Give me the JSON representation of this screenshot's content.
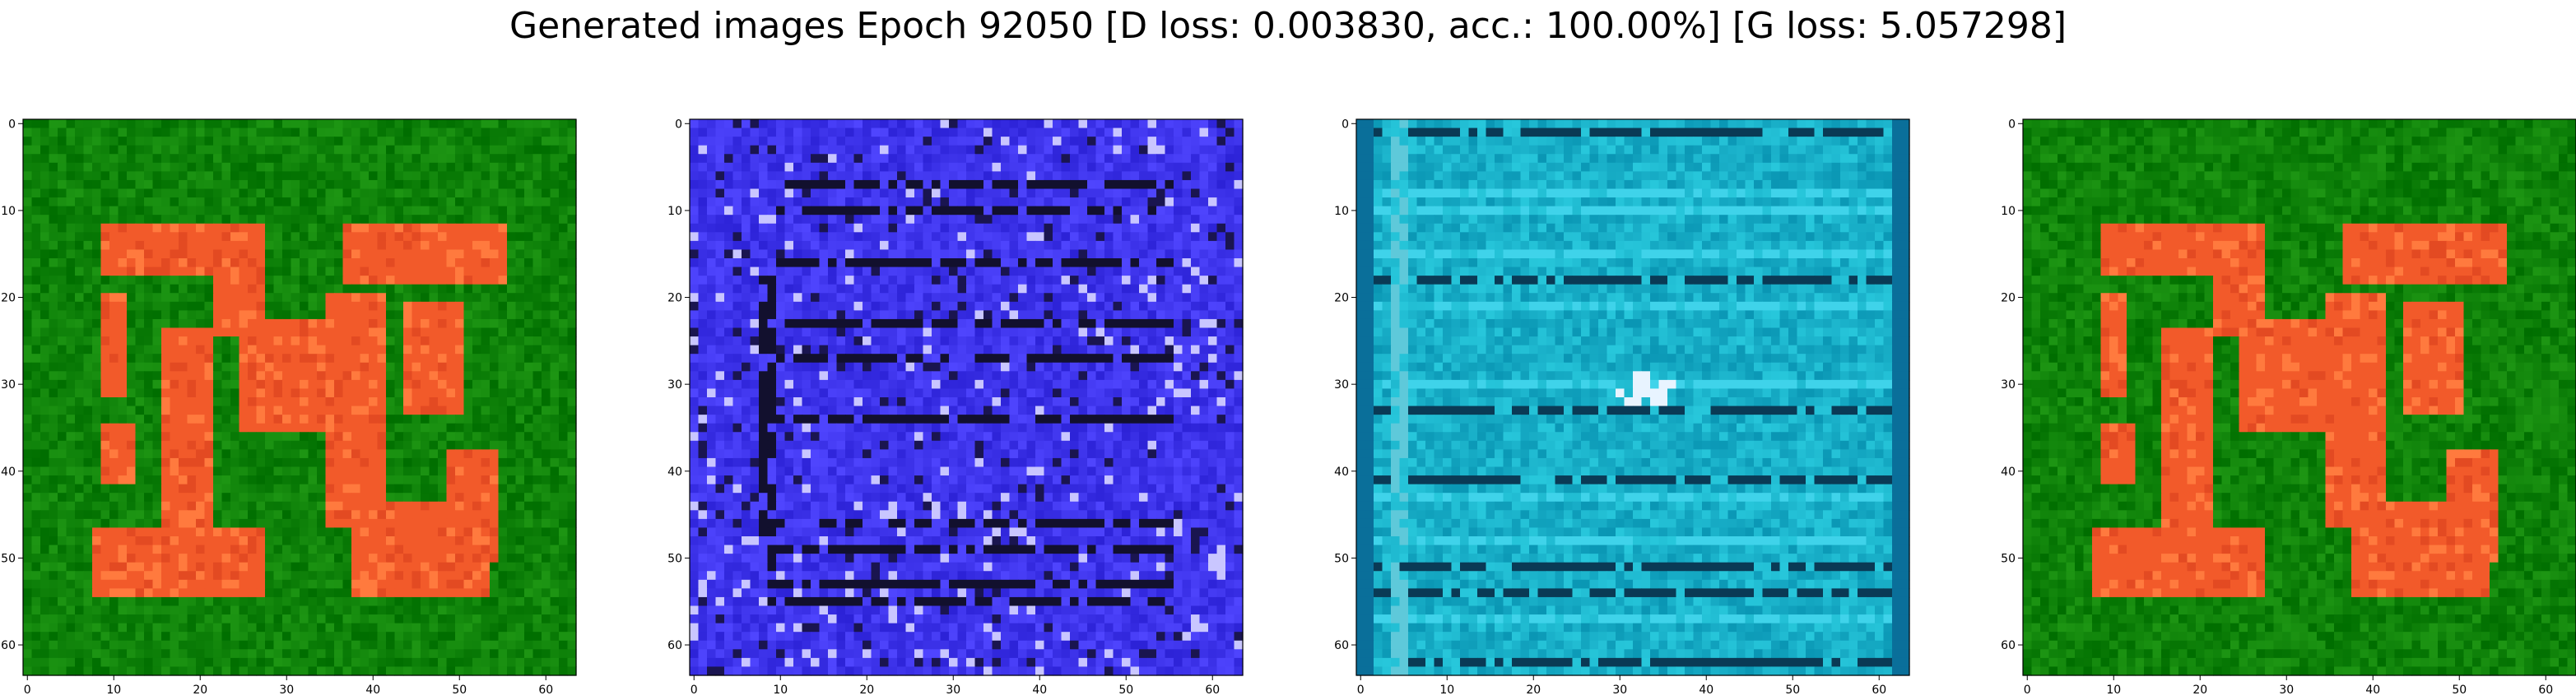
{
  "title": "Generated images Epoch 92050 [D loss: 0.003830, acc.: 100.00%] [G loss: 5.057298]",
  "chart_data": [
    {
      "type": "heatmap",
      "image": "Green background with red-orange glyph-like shape",
      "colors": {
        "background": "#0b7a0b",
        "foreground": "#f25a2a"
      },
      "xlim": [
        0,
        63
      ],
      "ylim": [
        63,
        0
      ],
      "xticks": [
        "0",
        "10",
        "20",
        "30",
        "40",
        "50",
        "60"
      ],
      "yticks": [
        "0",
        "10",
        "20",
        "30",
        "40",
        "50",
        "60"
      ]
    },
    {
      "type": "heatmap",
      "image": "Blue noisy texture with dark horizontal/vertical streaks",
      "colors": {
        "background": "#3b2af0",
        "foreground": "#0a0a2a"
      },
      "xlim": [
        0,
        63
      ],
      "ylim": [
        63,
        0
      ],
      "xticks": [
        "0",
        "10",
        "20",
        "30",
        "40",
        "50",
        "60"
      ],
      "yticks": [
        "0",
        "10",
        "20",
        "30",
        "40",
        "50",
        "60"
      ]
    },
    {
      "type": "heatmap",
      "image": "Cyan texture with horizontal bands and a bright spot near center",
      "colors": {
        "background": "#1aa6c4",
        "foreground": "#07324a"
      },
      "xlim": [
        0,
        63
      ],
      "ylim": [
        63,
        0
      ],
      "xticks": [
        "0",
        "10",
        "20",
        "30",
        "40",
        "50",
        "60"
      ],
      "yticks": [
        "0",
        "10",
        "20",
        "30",
        "40",
        "50",
        "60"
      ]
    },
    {
      "type": "heatmap",
      "image": "Green background with red-orange glyph-like shape",
      "colors": {
        "background": "#0b7a0b",
        "foreground": "#f25a2a"
      },
      "xlim": [
        0,
        63
      ],
      "ylim": [
        63,
        0
      ],
      "xticks": [
        "0",
        "10",
        "20",
        "30",
        "40",
        "50",
        "60"
      ],
      "yticks": [
        "0",
        "10",
        "20",
        "30",
        "40",
        "50",
        "60"
      ]
    }
  ]
}
